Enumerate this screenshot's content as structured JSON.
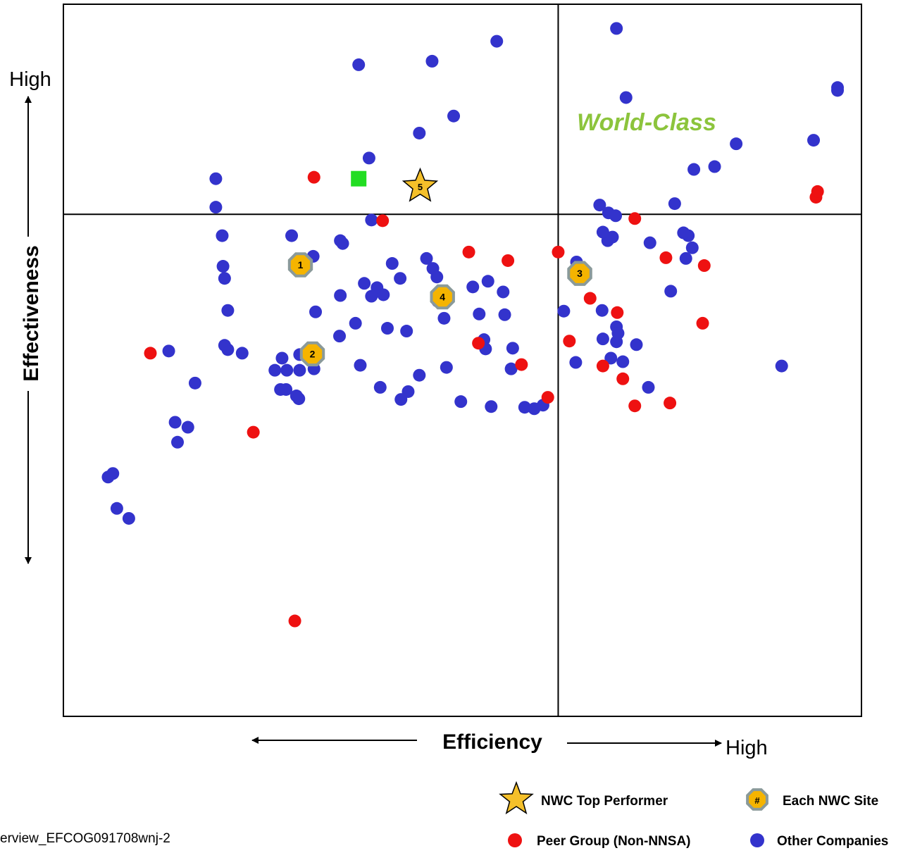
{
  "chart_data": {
    "type": "scatter",
    "title": "",
    "xlabel": "Efficiency",
    "ylabel": "Effectiveness",
    "x_high_label": "High",
    "y_high_label": "High",
    "xlim": [
      0,
      100
    ],
    "ylim": [
      0,
      100
    ],
    "grid": false,
    "quadrant_divider": {
      "x": 62,
      "y": 70.5
    },
    "quadrant_label": "World-Class",
    "quadrant_label_color": "#8cc43c",
    "series": [
      {
        "name": "Other Companies",
        "color": "#3333cc",
        "marker": "circle",
        "points": [
          [
            5.6,
            33.6
          ],
          [
            13.2,
            51.3
          ],
          [
            20.2,
            61.5
          ],
          [
            20.6,
            57.0
          ],
          [
            20.0,
            63.2
          ],
          [
            22.4,
            51.0
          ],
          [
            28.6,
            67.5
          ],
          [
            37.0,
            91.5
          ],
          [
            46.2,
            92.0
          ],
          [
            54.3,
            94.8
          ],
          [
            69.3,
            96.6
          ],
          [
            70.5,
            86.9
          ],
          [
            48.9,
            84.3
          ],
          [
            44.6,
            81.9
          ],
          [
            19.1,
            75.5
          ],
          [
            19.1,
            71.5
          ],
          [
            19.9,
            67.5
          ],
          [
            34.7,
            66.8
          ],
          [
            35.0,
            66.4
          ],
          [
            38.6,
            69.7
          ],
          [
            31.3,
            64.6
          ],
          [
            34.7,
            59.1
          ],
          [
            37.7,
            60.8
          ],
          [
            39.3,
            60.2
          ],
          [
            40.1,
            59.2
          ],
          [
            37.2,
            49.3
          ],
          [
            42.2,
            61.5
          ],
          [
            45.5,
            64.3
          ],
          [
            46.3,
            62.9
          ],
          [
            46.8,
            61.7
          ],
          [
            46.9,
            58.3
          ],
          [
            47.7,
            55.9
          ],
          [
            43.0,
            54.1
          ],
          [
            40.6,
            54.5
          ],
          [
            51.3,
            60.3
          ],
          [
            53.2,
            61.1
          ],
          [
            55.1,
            59.6
          ],
          [
            64.3,
            63.8
          ],
          [
            62.7,
            56.9
          ],
          [
            64.2,
            49.7
          ],
          [
            68.2,
            66.8
          ],
          [
            68.8,
            67.3
          ],
          [
            67.2,
            71.8
          ],
          [
            68.3,
            70.7
          ],
          [
            69.2,
            70.3
          ],
          [
            67.6,
            68.0
          ],
          [
            73.5,
            66.5
          ],
          [
            76.6,
            72.0
          ],
          [
            84.3,
            80.4
          ],
          [
            81.6,
            77.2
          ],
          [
            79.0,
            76.8
          ],
          [
            78.3,
            67.5
          ],
          [
            78.8,
            65.8
          ],
          [
            77.7,
            67.9
          ],
          [
            78.0,
            64.3
          ],
          [
            76.1,
            59.7
          ],
          [
            67.5,
            57.0
          ],
          [
            69.3,
            54.7
          ],
          [
            68.6,
            50.3
          ],
          [
            71.8,
            52.2
          ],
          [
            69.3,
            52.6
          ],
          [
            70.1,
            49.8
          ],
          [
            73.3,
            46.2
          ],
          [
            90.0,
            49.2
          ],
          [
            94.0,
            80.9
          ],
          [
            97.0,
            87.9
          ],
          [
            97.0,
            88.3
          ],
          [
            67.6,
            53.0
          ],
          [
            69.5,
            53.8
          ],
          [
            55.3,
            56.4
          ],
          [
            56.1,
            48.8
          ],
          [
            56.3,
            51.7
          ],
          [
            52.7,
            52.9
          ],
          [
            52.1,
            56.5
          ],
          [
            52.9,
            51.6
          ],
          [
            31.4,
            48.8
          ],
          [
            27.4,
            50.3
          ],
          [
            26.5,
            48.6
          ],
          [
            28.0,
            48.6
          ],
          [
            29.6,
            48.6
          ],
          [
            27.2,
            45.9
          ],
          [
            27.9,
            45.9
          ],
          [
            29.5,
            44.6
          ],
          [
            29.2,
            45.0
          ],
          [
            39.7,
            46.2
          ],
          [
            42.3,
            44.5
          ],
          [
            43.2,
            45.6
          ],
          [
            44.6,
            47.9
          ],
          [
            48.0,
            49.0
          ],
          [
            49.8,
            44.2
          ],
          [
            53.6,
            43.5
          ],
          [
            57.8,
            43.4
          ],
          [
            60.1,
            43.7
          ],
          [
            16.5,
            46.8
          ],
          [
            15.6,
            40.6
          ],
          [
            6.2,
            34.1
          ],
          [
            14.3,
            38.5
          ],
          [
            14.0,
            41.3
          ],
          [
            8.2,
            27.8
          ],
          [
            6.7,
            29.2
          ],
          [
            20.6,
            51.5
          ],
          [
            29.6,
            50.8
          ],
          [
            20.2,
            52.1
          ],
          [
            59.0,
            43.2
          ],
          [
            38.3,
            78.4
          ],
          [
            38.6,
            59.0
          ],
          [
            36.6,
            55.2
          ],
          [
            34.6,
            53.4
          ],
          [
            41.2,
            63.6
          ],
          [
            31.6,
            56.8
          ]
        ]
      },
      {
        "name": "Peer Group (Non-NNSA)",
        "color": "#ee1111",
        "marker": "circle",
        "points": [
          [
            31.4,
            75.7
          ],
          [
            40.0,
            69.6
          ],
          [
            50.8,
            65.2
          ],
          [
            55.7,
            64.0
          ],
          [
            62.0,
            65.2
          ],
          [
            71.6,
            69.9
          ],
          [
            94.3,
            72.9
          ],
          [
            94.5,
            73.7
          ],
          [
            75.5,
            64.4
          ],
          [
            80.3,
            63.3
          ],
          [
            66.0,
            58.7
          ],
          [
            69.4,
            56.7
          ],
          [
            80.1,
            55.2
          ],
          [
            63.4,
            52.7
          ],
          [
            67.6,
            49.2
          ],
          [
            70.1,
            47.4
          ],
          [
            71.6,
            43.6
          ],
          [
            60.7,
            44.8
          ],
          [
            52.0,
            52.4
          ],
          [
            10.9,
            51.0
          ],
          [
            23.8,
            39.9
          ],
          [
            29.0,
            13.4
          ],
          [
            57.4,
            49.4
          ],
          [
            76.0,
            44.0
          ]
        ]
      },
      {
        "name": "NWC Top Performer",
        "color": "#f5c02a",
        "marker": "star",
        "points": [
          [
            44.7,
            74.4
          ]
        ],
        "labels": [
          "5"
        ]
      },
      {
        "name": "Each NWC Site",
        "color": "#f5b400",
        "marker": "octagon",
        "points": [
          [
            29.7,
            63.4
          ],
          [
            31.2,
            50.9
          ],
          [
            64.7,
            62.2
          ],
          [
            47.5,
            58.9
          ]
        ],
        "labels": [
          "1",
          "2",
          "3",
          "4"
        ]
      },
      {
        "name": "",
        "color": "#22dd22",
        "marker": "square",
        "points": [
          [
            37.0,
            75.5
          ]
        ]
      }
    ],
    "legend": {
      "position": "bottom-right",
      "entries": [
        {
          "label": "NWC Top Performer",
          "marker": "star"
        },
        {
          "label": "Each NWC Site",
          "marker": "octagon",
          "marker_text": "#"
        },
        {
          "label": "Peer Group (Non-NNSA)",
          "marker": "circle-red"
        },
        {
          "label": "Other Companies",
          "marker": "circle-blue"
        }
      ]
    }
  },
  "footer": {
    "note": "erview_EFCOG091708wnj-2"
  }
}
